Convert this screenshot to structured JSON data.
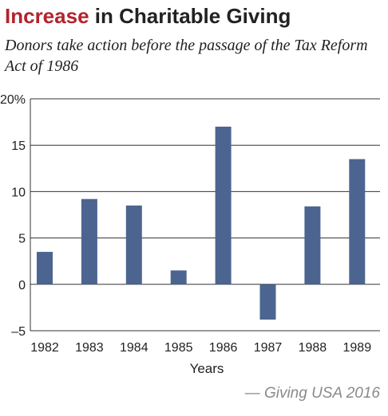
{
  "header": {
    "title_accent": "Increase",
    "title_rest": " in Charitable Giving",
    "subtitle": "Donors take action before the passage of the Tax Reform Act of 1986"
  },
  "footer": {
    "source": "— Giving USA 2016"
  },
  "colors": {
    "title_accent": "#b3232d",
    "bar": "#4c6590",
    "axis_text": "#222222",
    "grid": "#333333",
    "source_text": "#8a8a8a"
  },
  "chart_data": {
    "type": "bar",
    "title": "Increase in Charitable Giving",
    "subtitle": "Donors take action before the passage of the Tax Reform Act of 1986",
    "xlabel": "Years",
    "ylabel": "",
    "categories": [
      "1982",
      "1983",
      "1984",
      "1985",
      "1986",
      "1987",
      "1988",
      "1989"
    ],
    "values": [
      3.5,
      9.2,
      8.5,
      1.5,
      17.0,
      -3.8,
      8.4,
      13.5
    ],
    "ylim": [
      -5,
      20
    ],
    "yticks": [
      -5,
      0,
      5,
      10,
      15,
      20
    ],
    "ytick_labels": [
      "–5",
      "0",
      "5",
      "10",
      "15",
      "20%"
    ],
    "grid": true,
    "legend": "none"
  }
}
